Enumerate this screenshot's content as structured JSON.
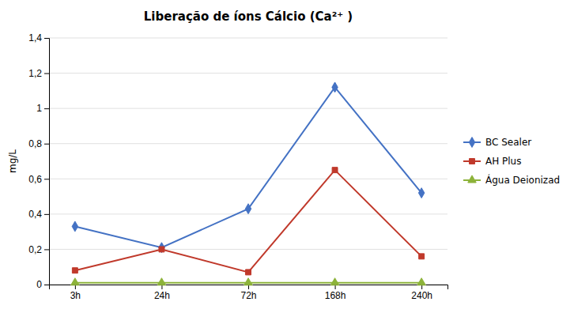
{
  "chart_data": {
    "type": "line",
    "title": "Liberação de íons Cálcio (Ca²⁺ )",
    "ylabel": "mg/L",
    "categories": [
      "3h",
      "24h",
      "72h",
      "168h",
      "240h"
    ],
    "series": [
      {
        "name": "BC Sealer",
        "color": "#4472C4",
        "marker": "diamond",
        "values": [
          0.33,
          0.21,
          0.43,
          1.12,
          0.52
        ]
      },
      {
        "name": "AH Plus",
        "color": "#C0392B",
        "marker": "square",
        "values": [
          0.08,
          0.2,
          0.07,
          0.65,
          0.16
        ]
      },
      {
        "name": "Água Deionizad",
        "color": "#8DB33A",
        "marker": "triangle",
        "values": [
          0.01,
          0.01,
          0.01,
          0.01,
          0.01
        ]
      }
    ],
    "ylim": [
      0,
      1.4
    ],
    "yticks": [
      0,
      {
        "value": 0.2,
        "label": "0,2"
      },
      {
        "value": 0.4,
        "label": "0,4"
      },
      {
        "value": 0.6,
        "label": "0,6"
      },
      {
        "value": 0.8,
        "label": "0,8"
      },
      1,
      {
        "value": 1.2,
        "label": "1,2"
      },
      {
        "value": 1.4,
        "label": "1,4"
      }
    ],
    "grid": true,
    "legend": "right"
  }
}
